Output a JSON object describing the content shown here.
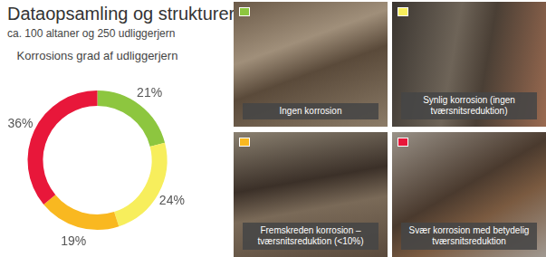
{
  "header": {
    "title": "Dataopsamling og strukturering",
    "subtitle": "ca. 100 altaner og 250 udliggerjern"
  },
  "chart_data": {
    "type": "doughnut",
    "title": "Korrosions grad af udliggerjern",
    "categories": [
      "Ingen korrosion",
      "Synlig korrosion (ingen tværsnitsreduktion)",
      "Fremskreden korrosion – tværsnitsreduktion (<10%)",
      "Svær korrosion med betydelig tværsnitsreduktion"
    ],
    "values": [
      21,
      24,
      19,
      36
    ],
    "value_labels": [
      "21%",
      "24%",
      "19%",
      "36%"
    ],
    "colors": [
      "#8dc63f",
      "#f7ee5c",
      "#f9b820",
      "#e8173a"
    ],
    "data_labels": true
  }
}
